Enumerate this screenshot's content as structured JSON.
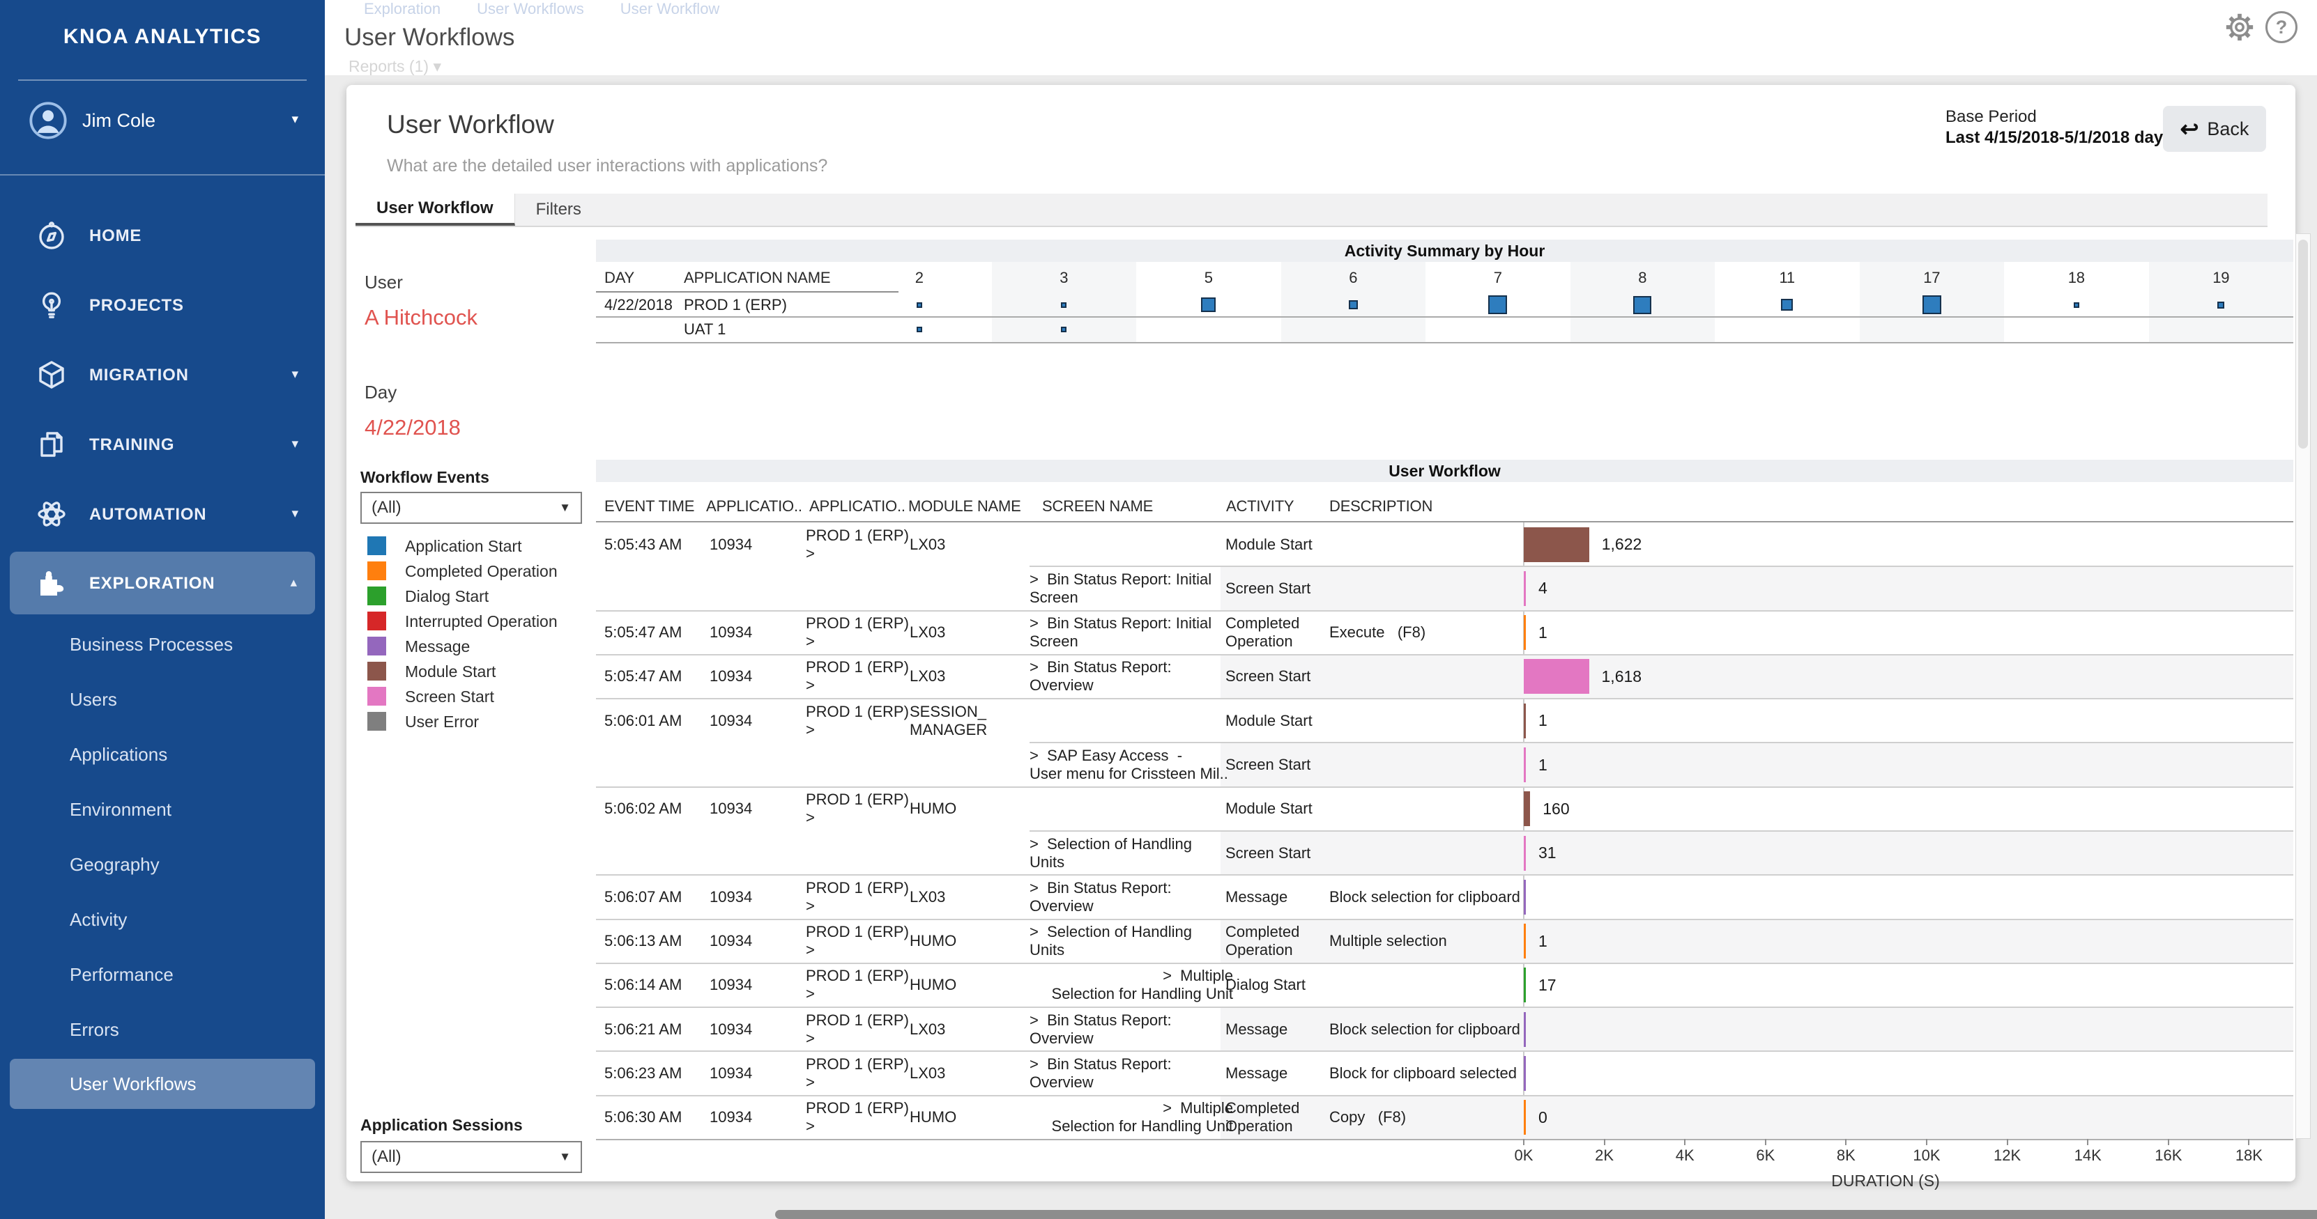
{
  "sidebar": {
    "brand": "KNOA ANALYTICS",
    "user_name": "Jim Cole",
    "items": [
      {
        "label": "HOME",
        "icon": "compass",
        "chevron": ""
      },
      {
        "label": "PROJECTS",
        "icon": "lightbulb",
        "chevron": ""
      },
      {
        "label": "MIGRATION",
        "icon": "cube",
        "chevron": "down"
      },
      {
        "label": "TRAINING",
        "icon": "documents",
        "chevron": "down"
      },
      {
        "label": "AUTOMATION",
        "icon": "atom",
        "chevron": "down"
      },
      {
        "label": "EXPLORATION",
        "icon": "puzzle",
        "chevron": "up",
        "active": true
      }
    ],
    "exploration_children": [
      {
        "label": "Business Processes"
      },
      {
        "label": "Users"
      },
      {
        "label": "Applications"
      },
      {
        "label": "Environment"
      },
      {
        "label": "Geography"
      },
      {
        "label": "Activity"
      },
      {
        "label": "Performance"
      },
      {
        "label": "Errors"
      },
      {
        "label": "User Workflows",
        "active": true
      }
    ]
  },
  "topbar": {
    "breadcrumb": [
      "Exploration",
      "User Workflows",
      "User Workflow"
    ],
    "title": "User Workflows",
    "reports": "Reports (1)"
  },
  "panel": {
    "title": "User Workflow",
    "subtitle": "What are the detailed user interactions with applications?",
    "base_period_label": "Base Period",
    "base_period_value": "Last 4/15/2018-5/1/2018 day",
    "back_label": "Back",
    "tabs": [
      {
        "label": "User Workflow",
        "active": true
      },
      {
        "label": "Filters",
        "active": false
      }
    ]
  },
  "controls": {
    "user_label": "User",
    "user_value": "A Hitchcock",
    "day_label": "Day",
    "day_value": "4/22/2018",
    "accent_color": "#e0534f",
    "workflow_events_label": "Workflow Events",
    "workflow_events_value": "(All)",
    "application_sessions_label": "Application Sessions",
    "application_sessions_value": "(All)",
    "legend": [
      {
        "label": "Application Start",
        "color": "#1f77b4"
      },
      {
        "label": "Completed Operation",
        "color": "#ff7f0e"
      },
      {
        "label": "Dialog Start",
        "color": "#2ca02c"
      },
      {
        "label": "Interrupted Operation",
        "color": "#d62728"
      },
      {
        "label": "Message",
        "color": "#9467bd"
      },
      {
        "label": "Module Start",
        "color": "#8c564b"
      },
      {
        "label": "Screen Start",
        "color": "#e377c2"
      },
      {
        "label": "User Error",
        "color": "#7f7f7f"
      }
    ]
  },
  "activity_summary": {
    "title": "Activity Summary by Hour",
    "day_header": "DAY",
    "app_header": "APPLICATION NAME",
    "hours": [
      "2",
      "3",
      "5",
      "6",
      "7",
      "8",
      "11",
      "17",
      "18",
      "19"
    ],
    "marker_color": "#2e7dbe",
    "rows": [
      {
        "day": "4/22/2018",
        "app": "PROD 1 (ERP)",
        "marker_sizes": [
          8,
          8,
          21,
          13,
          27,
          26,
          17,
          27,
          8,
          10
        ]
      },
      {
        "day": "",
        "app": "UAT 1",
        "marker_sizes": [
          8,
          8,
          0,
          0,
          0,
          0,
          0,
          0,
          0,
          0
        ]
      }
    ]
  },
  "workflow": {
    "title": "User Workflow",
    "columns": [
      "EVENT TIME",
      "APPLICATIO..",
      "APPLICATIO..",
      "MODULE NAME",
      "SCREEN NAME",
      "ACTIVITY",
      "DESCRIPTION"
    ],
    "screen_prefix": ">",
    "axis_label": "DURATION (S)",
    "axis_ticks": [
      "0K",
      "2K",
      "4K",
      "6K",
      "8K",
      "10K",
      "12K",
      "14K",
      "16K",
      "18K"
    ],
    "axis_max": 18000,
    "event_colors": {
      "Application Start": "#1f77b4",
      "Completed Operation": "#ff7f0e",
      "Dialog Start": "#2ca02c",
      "Interrupted Operation": "#d62728",
      "Message": "#9467bd",
      "Module Start": "#8c564b",
      "Screen Start": "#e377c2",
      "User Error": "#7f7f7f"
    },
    "rows": [
      {
        "time": "5:05:43 AM",
        "app_id": "10934",
        "app": "PROD 1 (ERP)  >",
        "module": "LX03",
        "screen": "",
        "activity": "Module Start",
        "description": "",
        "value": 1622,
        "value_label": "1,622",
        "event_type": "Module Start",
        "continuation": false
      },
      {
        "time": "",
        "app_id": "",
        "app": "",
        "module": "",
        "screen": "Bin Status Report: Initial\nScreen",
        "activity": "Screen Start",
        "description": "",
        "value": 4,
        "value_label": "4",
        "event_type": "Screen Start",
        "continuation": true
      },
      {
        "time": "5:05:47 AM",
        "app_id": "10934",
        "app": "PROD 1 (ERP)  >",
        "module": "LX03",
        "screen": "Bin Status Report: Initial\nScreen",
        "activity": "Completed\nOperation",
        "description": "Execute   (F8)",
        "value": 1,
        "value_label": "1",
        "event_type": "Completed Operation",
        "continuation": false
      },
      {
        "time": "5:05:47 AM",
        "app_id": "10934",
        "app": "PROD 1 (ERP)  >",
        "module": "LX03",
        "screen": "Bin Status Report:\nOverview",
        "activity": "Screen Start",
        "description": "",
        "value": 1618,
        "value_label": "1,618",
        "event_type": "Screen Start",
        "continuation": false
      },
      {
        "time": "5:06:01 AM",
        "app_id": "10934",
        "app": "PROD 1 (ERP)  >",
        "module": "SESSION_\nMANAGER",
        "screen": "",
        "activity": "Module Start",
        "description": "",
        "value": 1,
        "value_label": "1",
        "event_type": "Module Start",
        "continuation": false
      },
      {
        "time": "",
        "app_id": "",
        "app": "",
        "module": "",
        "screen": "SAP Easy Access  -\nUser menu for Crissteen Mil..",
        "activity": "Screen Start",
        "description": "",
        "value": 1,
        "value_label": "1",
        "event_type": "Screen Start",
        "continuation": true
      },
      {
        "time": "5:06:02 AM",
        "app_id": "10934",
        "app": "PROD 1 (ERP)  >",
        "module": "HUMO",
        "screen": "",
        "activity": "Module Start",
        "description": "",
        "value": 160,
        "value_label": "160",
        "event_type": "Module Start",
        "continuation": false
      },
      {
        "time": "",
        "app_id": "",
        "app": "",
        "module": "",
        "screen": "Selection of Handling\nUnits",
        "activity": "Screen Start",
        "description": "",
        "value": 31,
        "value_label": "31",
        "event_type": "Screen Start",
        "continuation": true
      },
      {
        "time": "5:06:07 AM",
        "app_id": "10934",
        "app": "PROD 1 (ERP)  >",
        "module": "LX03",
        "screen": "Bin Status Report:\nOverview",
        "activity": "Message",
        "description": "Block selection for clipboard",
        "value": null,
        "value_label": "",
        "event_type": "Message",
        "continuation": false
      },
      {
        "time": "5:06:13 AM",
        "app_id": "10934",
        "app": "PROD 1 (ERP)  >",
        "module": "HUMO",
        "screen": "Selection of Handling\nUnits",
        "activity": "Completed\nOperation",
        "description": "Multiple selection",
        "value": 1,
        "value_label": "1",
        "event_type": "Completed Operation",
        "continuation": false
      },
      {
        "time": "5:06:14 AM",
        "app_id": "10934",
        "app": "PROD 1 (ERP)  >",
        "module": "HUMO",
        "screen": "Multiple\nSelection for Handling Unit",
        "screen_align": "right",
        "activity": "Dialog Start",
        "description": "",
        "value": 17,
        "value_label": "17",
        "event_type": "Dialog Start",
        "continuation": false
      },
      {
        "time": "5:06:21 AM",
        "app_id": "10934",
        "app": "PROD 1 (ERP)  >",
        "module": "LX03",
        "screen": "Bin Status Report:\nOverview",
        "activity": "Message",
        "description": "Block selection for clipboard",
        "value": null,
        "value_label": "",
        "event_type": "Message",
        "continuation": false
      },
      {
        "time": "5:06:23 AM",
        "app_id": "10934",
        "app": "PROD 1 (ERP)  >",
        "module": "LX03",
        "screen": "Bin Status Report:\nOverview",
        "activity": "Message",
        "description": "Block for clipboard selected",
        "value": null,
        "value_label": "",
        "event_type": "Message",
        "continuation": false
      },
      {
        "time": "5:06:30 AM",
        "app_id": "10934",
        "app": "PROD 1 (ERP)  >",
        "module": "HUMO",
        "screen": "Multiple\nSelection for Handling Unit",
        "screen_align": "right",
        "activity": "Completed\nOperation",
        "description": "Copy   (F8)",
        "value": 0,
        "value_label": "0",
        "event_type": "Completed Operation",
        "continuation": false
      }
    ]
  }
}
